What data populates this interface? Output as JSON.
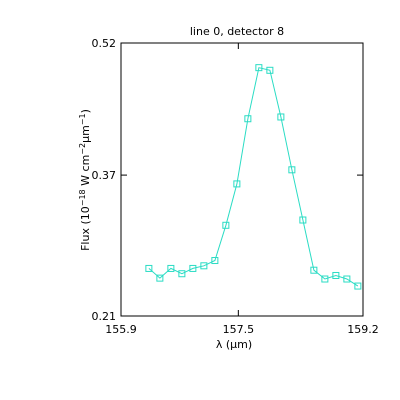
{
  "chart_data": {
    "type": "line",
    "title": "line 0, detector 8",
    "xlabel": "λ (μm)",
    "ylabel_parts": {
      "pre": "Flux (10",
      "exp1": "−18",
      "mid": " W cm",
      "exp2": "−2",
      "mu": "μm",
      "exp3": "−1",
      "post": ")"
    },
    "xlim": [
      155.9,
      159.2
    ],
    "ylim": [
      0.21,
      0.52
    ],
    "xticks": [
      155.9,
      157.5,
      159.2
    ],
    "xtick_labels": [
      "155.9",
      "157.5",
      "159.2"
    ],
    "yticks": [
      0.21,
      0.37,
      0.52
    ],
    "ytick_labels": [
      "0.21",
      "0.37",
      "0.52"
    ],
    "grid": false,
    "series": [
      {
        "color": "#2adcc4",
        "marker": "square",
        "x": [
          156.28,
          156.43,
          156.58,
          156.73,
          156.88,
          157.03,
          157.18,
          157.33,
          157.48,
          157.63,
          157.78,
          157.93,
          158.08,
          158.23,
          158.38,
          158.53,
          158.68,
          158.83,
          158.98,
          159.13
        ],
        "y": [
          0.264,
          0.253,
          0.264,
          0.258,
          0.264,
          0.267,
          0.273,
          0.313,
          0.36,
          0.434,
          0.492,
          0.489,
          0.436,
          0.376,
          0.319,
          0.262,
          0.252,
          0.256,
          0.252,
          0.244
        ]
      }
    ]
  }
}
